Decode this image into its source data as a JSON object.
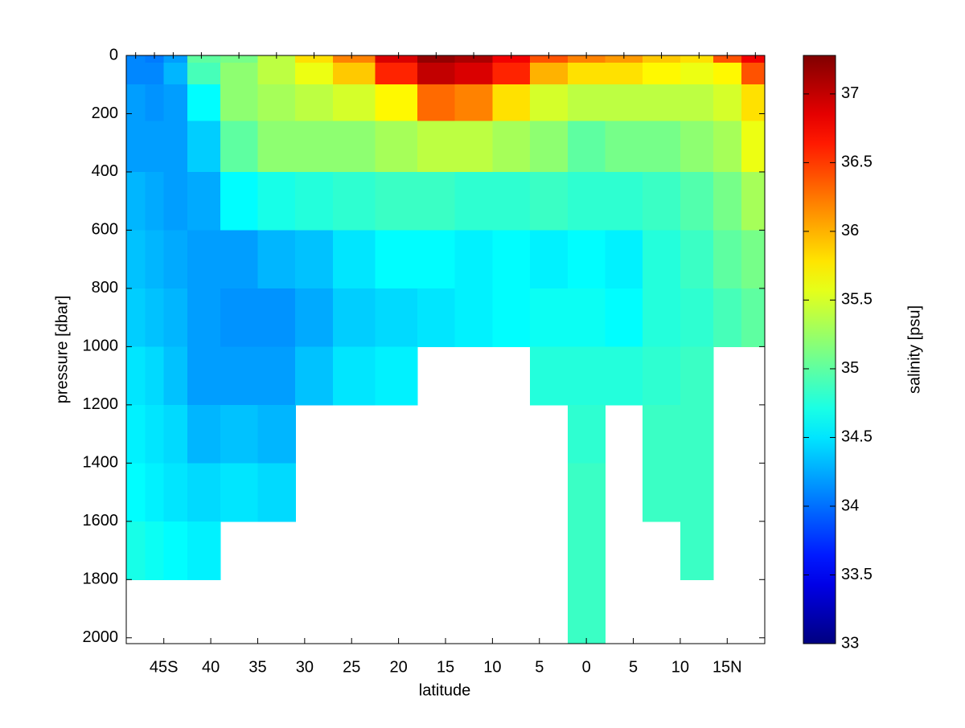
{
  "chart_data": {
    "type": "contour",
    "xlabel": "latitude",
    "ylabel": "pressure [dbar]",
    "colorbar_label": "salinity [psu]",
    "colormap": "jet",
    "y_inverted": true,
    "x": [
      -48,
      -46,
      -44,
      -41,
      -37,
      -33,
      -29,
      -25,
      -20,
      -16,
      -12,
      -8,
      -4,
      0,
      4,
      8,
      12,
      15,
      18
    ],
    "y": [
      0,
      50,
      150,
      300,
      500,
      700,
      900,
      1100,
      1300,
      1500,
      1700,
      1900
    ],
    "z": [
      [
        34.1,
        34.05,
        34.2,
        35.0,
        35.1,
        35.4,
        35.8,
        36.2,
        36.9,
        37.2,
        37.1,
        36.8,
        36.4,
        36.2,
        36.1,
        35.9,
        35.8,
        36.4,
        36.8
      ],
      [
        34.1,
        34.1,
        34.3,
        34.9,
        35.2,
        35.4,
        35.6,
        35.9,
        36.6,
        37.0,
        36.9,
        36.6,
        36.0,
        35.8,
        35.8,
        35.7,
        35.6,
        35.7,
        36.4
      ],
      [
        34.2,
        34.15,
        34.2,
        34.6,
        35.2,
        35.3,
        35.4,
        35.5,
        35.7,
        36.3,
        36.2,
        35.8,
        35.5,
        35.4,
        35.4,
        35.4,
        35.4,
        35.5,
        35.8
      ],
      [
        34.2,
        34.2,
        34.2,
        34.4,
        35.0,
        35.2,
        35.2,
        35.2,
        35.3,
        35.4,
        35.4,
        35.3,
        35.2,
        35.0,
        35.1,
        35.1,
        35.2,
        35.3,
        35.6
      ],
      [
        34.3,
        34.25,
        34.2,
        34.25,
        34.6,
        34.7,
        34.75,
        34.8,
        34.85,
        34.85,
        34.8,
        34.8,
        34.85,
        34.8,
        34.8,
        34.85,
        34.95,
        35.1,
        35.3
      ],
      [
        34.35,
        34.3,
        34.25,
        34.2,
        34.2,
        34.3,
        34.35,
        34.5,
        34.6,
        34.6,
        34.55,
        34.6,
        34.55,
        34.6,
        34.55,
        34.75,
        34.85,
        35.0,
        35.1
      ],
      [
        34.4,
        34.35,
        34.3,
        34.2,
        34.15,
        34.15,
        34.25,
        34.4,
        34.45,
        34.5,
        34.55,
        34.6,
        34.65,
        34.65,
        34.6,
        34.75,
        34.8,
        34.9,
        35.0
      ],
      [
        34.5,
        34.45,
        34.35,
        34.2,
        34.2,
        34.2,
        34.35,
        34.5,
        34.55,
        null,
        null,
        null,
        34.75,
        34.75,
        34.75,
        34.8,
        34.85,
        null,
        null
      ],
      [
        34.55,
        34.5,
        34.45,
        34.3,
        34.35,
        34.3,
        null,
        null,
        null,
        null,
        null,
        null,
        null,
        34.8,
        null,
        34.85,
        34.85,
        null,
        null
      ],
      [
        34.6,
        34.55,
        34.5,
        34.45,
        34.5,
        34.45,
        null,
        null,
        null,
        null,
        null,
        null,
        null,
        34.85,
        null,
        34.85,
        34.85,
        null,
        null
      ],
      [
        34.7,
        34.65,
        34.6,
        34.55,
        null,
        null,
        null,
        null,
        null,
        null,
        null,
        null,
        null,
        34.85,
        null,
        null,
        34.85,
        null,
        null
      ],
      [
        null,
        null,
        null,
        null,
        null,
        null,
        null,
        null,
        null,
        null,
        null,
        null,
        null,
        34.85,
        null,
        null,
        null,
        null,
        null
      ]
    ],
    "xlim": [
      -49,
      19
    ],
    "xticks": [
      {
        "value": -45,
        "label": "45S"
      },
      {
        "value": -40,
        "label": "40"
      },
      {
        "value": -35,
        "label": "35"
      },
      {
        "value": -30,
        "label": "30"
      },
      {
        "value": -25,
        "label": "25"
      },
      {
        "value": -20,
        "label": "20"
      },
      {
        "value": -15,
        "label": "15"
      },
      {
        "value": -10,
        "label": "10"
      },
      {
        "value": -5,
        "label": "5"
      },
      0,
      5,
      10,
      {
        "value": 15,
        "label": "15N"
      }
    ],
    "ylim": [
      0,
      2020
    ],
    "yticks": [
      0,
      200,
      400,
      600,
      800,
      1000,
      1200,
      1400,
      1600,
      1800,
      2000
    ],
    "clim": [
      33,
      37.28
    ],
    "cticks": [
      33,
      33.5,
      34,
      34.5,
      35,
      35.5,
      36,
      36.5,
      37
    ]
  }
}
